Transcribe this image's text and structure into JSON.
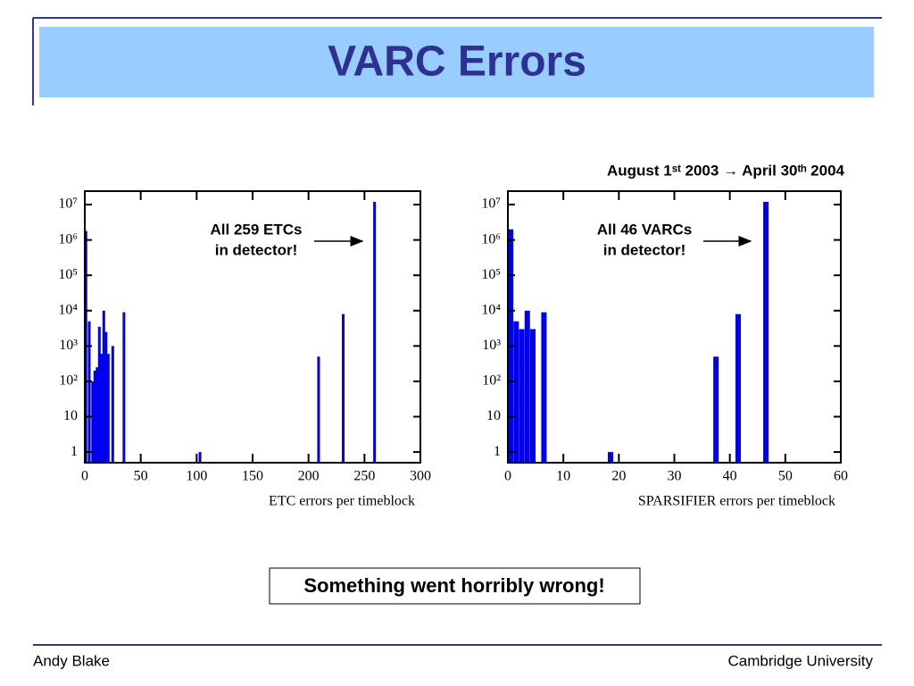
{
  "slide_title": "VARC Errors",
  "date_range": "August 1ˢᵗ 2003 → April 30ᵗʰ 2004",
  "callout": "Something went horribly wrong!",
  "footer": {
    "left": "Andy Blake",
    "right": "Cambridge University"
  },
  "chart_data": [
    {
      "type": "bar",
      "x_label": "ETC errors per timeblock",
      "annotation": [
        "All 259 ETCs",
        "in detector!"
      ],
      "x": [
        1,
        4,
        7,
        9,
        11,
        13,
        15,
        17,
        19,
        21,
        25,
        35,
        103,
        209,
        231,
        259
      ],
      "values": [
        1800000,
        5000,
        100,
        200,
        250,
        3500,
        600,
        10000,
        2500,
        600,
        1000,
        9000,
        1,
        500,
        8000,
        12000000
      ],
      "color": "#0000ee",
      "log_y": true,
      "xlim": [
        0,
        300
      ],
      "xticks": [
        0,
        50,
        100,
        150,
        200,
        250,
        300
      ],
      "ylim": [
        0.5,
        24000000
      ],
      "yticks": [
        1,
        10,
        {
          "value": 100,
          "label": "10²"
        },
        {
          "value": 1000,
          "label": "10³"
        },
        {
          "value": 10000,
          "label": "10⁴"
        },
        {
          "value": 100000,
          "label": "10⁵"
        },
        {
          "value": 1000000,
          "label": "10⁶"
        },
        {
          "value": 10000000,
          "label": "10⁷"
        }
      ]
    },
    {
      "type": "bar",
      "x_label": "SPARSIFIER errors per timeblock",
      "annotation": [
        "All 46 VARCs",
        "in detector!"
      ],
      "x": [
        0.5,
        1.5,
        2.5,
        3.5,
        4.5,
        6.5,
        18.5,
        37.5,
        41.5,
        46.5
      ],
      "values": [
        2000000,
        5000,
        3000,
        10000,
        3000,
        9000,
        1,
        500,
        8000,
        12000000
      ],
      "color": "#0000ee",
      "log_y": true,
      "xlim": [
        0,
        60
      ],
      "xticks": [
        0,
        10,
        20,
        30,
        40,
        50,
        60
      ],
      "ylim": [
        0.5,
        24000000
      ],
      "yticks": [
        1,
        10,
        {
          "value": 100,
          "label": "10²"
        },
        {
          "value": 1000,
          "label": "10³"
        },
        {
          "value": 10000,
          "label": "10⁴"
        },
        {
          "value": 100000,
          "label": "10⁵"
        },
        {
          "value": 1000000,
          "label": "10⁶"
        },
        {
          "value": 10000000,
          "label": "10⁷"
        }
      ]
    }
  ]
}
